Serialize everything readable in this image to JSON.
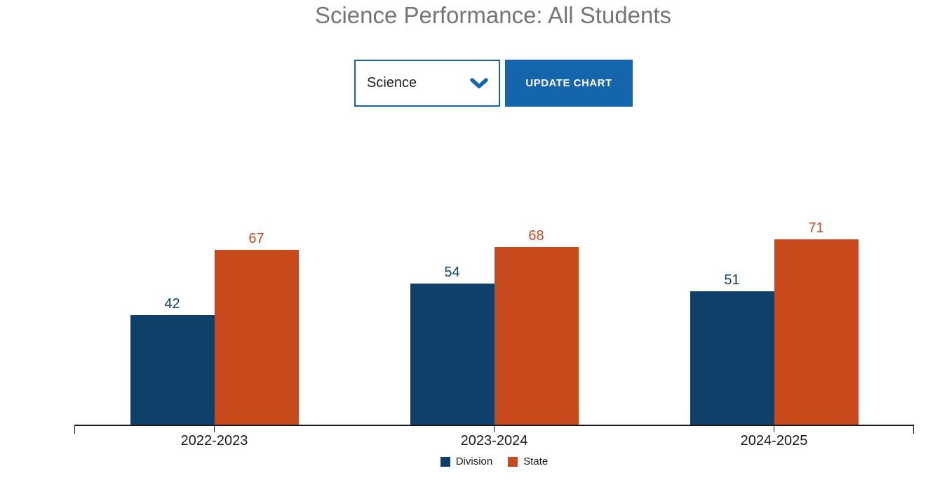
{
  "header": {
    "title": "Science Performance: All Students"
  },
  "controls": {
    "subject_select": {
      "value": "Science",
      "icon": "chevron-down-icon"
    },
    "update_button_label": "UPDATE CHART"
  },
  "colors": {
    "accent_blue": "#1565ad",
    "title_gray": "#757575",
    "axis_black": "#1a1a1a",
    "division_navy": "#0e4069",
    "state_orange": "#c7491c"
  },
  "chart_data": {
    "type": "bar",
    "categories": [
      "2022-2023",
      "2023-2024",
      "2024-2025"
    ],
    "series": [
      {
        "name": "Division",
        "values": [
          42,
          54,
          51
        ],
        "color": "#0e4069"
      },
      {
        "name": "State",
        "values": [
          67,
          68,
          71
        ],
        "color": "#c7491c"
      }
    ],
    "title": "Science Performance: All Students",
    "xlabel": "",
    "ylabel": "",
    "ylim": [
      0,
      82
    ],
    "grid": false,
    "value_labels": true,
    "legend_position": "bottom"
  }
}
